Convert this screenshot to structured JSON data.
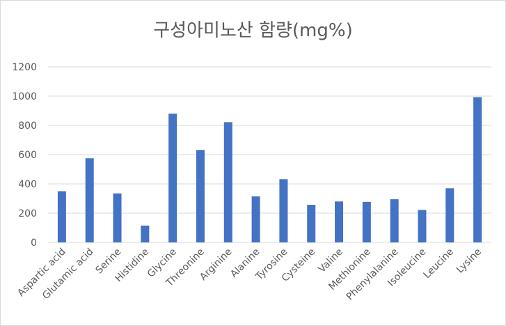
{
  "chart_data": {
    "type": "bar",
    "title": "구성아미노산 함량(mg%)",
    "xlabel": "",
    "ylabel": "",
    "categories": [
      "Aspartic acid",
      "Glutamic acid",
      "Serine",
      "Histidine",
      "Glycine",
      "Threonine",
      "Arginine",
      "Alanine",
      "Tyrosine",
      "Cysteine",
      "Valine",
      "Methionine",
      "Phenylalanine",
      "Isoleucine",
      "Leucine",
      "Lysine"
    ],
    "values": [
      350,
      575,
      335,
      115,
      880,
      632,
      822,
      315,
      432,
      257,
      280,
      277,
      295,
      222,
      370,
      993
    ],
    "ylim": [
      0,
      1200
    ],
    "yticks": [
      "0",
      "200",
      "400",
      "600",
      "800",
      "1000",
      "1200"
    ],
    "grid": true,
    "legend": "none",
    "colors": {
      "bar": "#4472c4",
      "grid": "#d9d9d9",
      "text": "#595959"
    }
  }
}
